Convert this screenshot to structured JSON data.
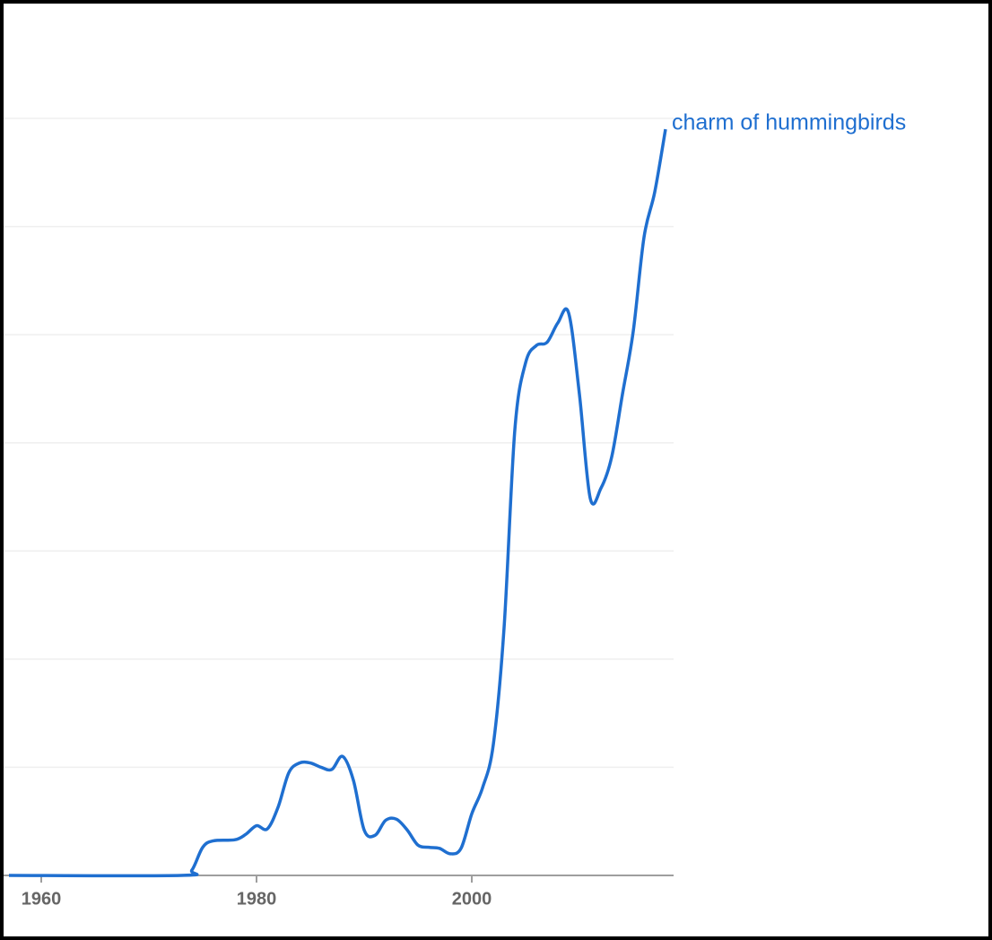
{
  "chart_data": {
    "type": "line",
    "x": [
      1957,
      1973,
      1974,
      1975,
      1976,
      1978,
      1979,
      1980,
      1981,
      1982,
      1983,
      1984,
      1985,
      1986,
      1987,
      1988,
      1989,
      1990,
      1991,
      1992,
      1993,
      1994,
      1995,
      1996,
      1997,
      1998,
      1999,
      2000,
      2001,
      2002,
      2003,
      2004,
      2005,
      2006,
      2007,
      2008,
      2009,
      2010,
      2011,
      2012,
      2013,
      2014,
      2015,
      2016,
      2017,
      2018
    ],
    "series": [
      {
        "name": "charm of hummingbirds",
        "color": "#1f6fd0",
        "values": [
          0,
          0,
          0.05,
          0.26,
          0.32,
          0.33,
          0.38,
          0.46,
          0.43,
          0.63,
          0.95,
          1.04,
          1.04,
          1.0,
          0.98,
          1.1,
          0.88,
          0.42,
          0.37,
          0.51,
          0.52,
          0.42,
          0.28,
          0.26,
          0.25,
          0.2,
          0.25,
          0.57,
          0.81,
          1.21,
          2.29,
          4.12,
          4.74,
          4.9,
          4.93,
          5.11,
          5.2,
          4.45,
          3.49,
          3.58,
          3.87,
          4.45,
          5.03,
          5.9,
          6.32,
          6.9
        ]
      }
    ],
    "xlim": [
      1956.5,
      2018.75
    ],
    "xticks": [
      1960,
      1980,
      2000
    ],
    "ylim": [
      0,
      7
    ],
    "ygrid": [
      1,
      2,
      3,
      4,
      5,
      6,
      7
    ],
    "grid": true
  }
}
